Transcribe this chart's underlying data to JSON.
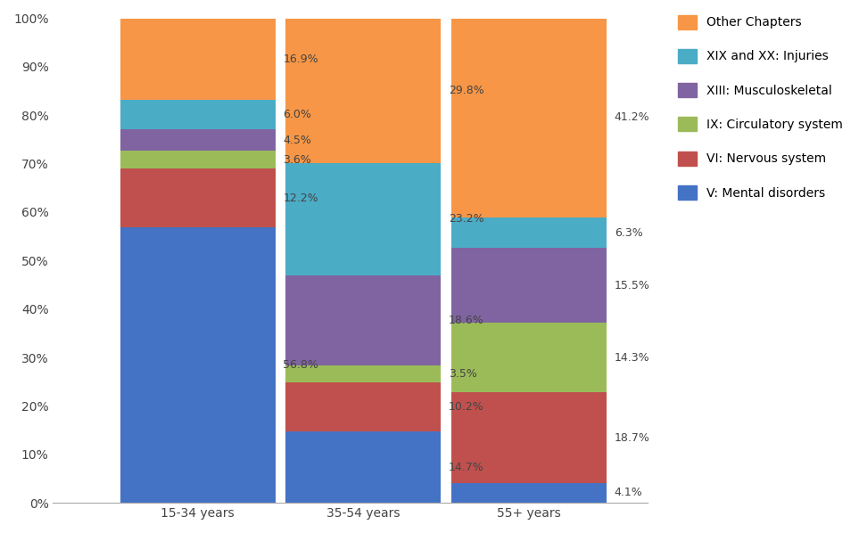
{
  "categories": [
    "15-34 years",
    "35-54 years",
    "55+ years"
  ],
  "series": [
    {
      "label": "V: Mental disorders",
      "color": "#4472C4",
      "values": [
        56.8,
        14.7,
        4.1
      ]
    },
    {
      "label": "VI: Nervous system",
      "color": "#C0504D",
      "values": [
        12.2,
        10.2,
        18.7
      ]
    },
    {
      "label": "IX: Circulatory system",
      "color": "#9BBB59",
      "values": [
        3.6,
        3.5,
        14.3
      ]
    },
    {
      "label": "XIII: Musculoskeletal",
      "color": "#8064A2",
      "values": [
        4.5,
        18.6,
        15.5
      ]
    },
    {
      "label": "XIX and XX: Injuries",
      "color": "#4BACC6",
      "values": [
        6.0,
        23.2,
        6.3
      ]
    },
    {
      "label": "Other Chapters",
      "color": "#F79646",
      "values": [
        16.9,
        29.8,
        41.2
      ]
    }
  ],
  "ylim": [
    0,
    100
  ],
  "yticks": [
    0,
    10,
    20,
    30,
    40,
    50,
    60,
    70,
    80,
    90,
    100
  ],
  "ytick_labels": [
    "0%",
    "10%",
    "20%",
    "30%",
    "40%",
    "50%",
    "60%",
    "70%",
    "80%",
    "90%",
    "100%"
  ],
  "label_fontsize": 9.0,
  "tick_fontsize": 10,
  "legend_fontsize": 10,
  "bar_width": 0.3,
  "bar_positions": [
    0.18,
    0.5,
    0.82
  ],
  "background_color": "#ffffff"
}
